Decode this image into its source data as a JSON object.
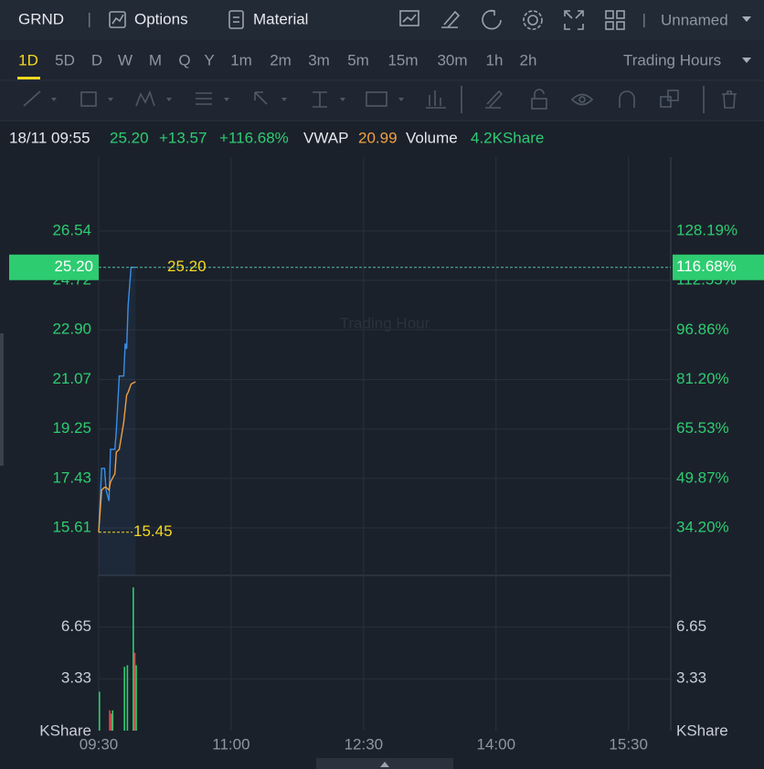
{
  "header": {
    "symbol": "GRND",
    "menu": [
      "Options",
      "Material"
    ],
    "layout_name": "Unnamed"
  },
  "timeframes": [
    "1D",
    "5D",
    "D",
    "W",
    "M",
    "Q",
    "Y",
    "1m",
    "2m",
    "3m",
    "5m",
    "15m",
    "30m",
    "1h",
    "2h"
  ],
  "session": "Trading Hours",
  "info": {
    "datetime": "18/11 09:55",
    "price": "25.20",
    "change": "+13.57",
    "change_pct": "+116.68%",
    "vwap_label": "VWAP",
    "vwap": "20.99",
    "volume_label": "Volume",
    "volume": "4.2KShare"
  },
  "chart_data": [
    {
      "type": "line",
      "watermark": "Trading Hour",
      "x": [
        "09:30",
        "09:32",
        "09:34",
        "09:35",
        "09:37",
        "09:38",
        "09:41",
        "09:42",
        "09:44",
        "09:47",
        "09:48",
        "09:49",
        "09:50",
        "09:52",
        "09:55"
      ],
      "xlim": [
        "09:30",
        "16:00"
      ],
      "xticks": [
        "09:30",
        "11:00",
        "12:30",
        "14:00",
        "15:30"
      ],
      "series": [
        {
          "color": "#3a8ee6",
          "values": [
            15.45,
            17.8,
            17.8,
            17.0,
            16.6,
            18.5,
            18.5,
            19.2,
            21.2,
            21.2,
            22.4,
            22.2,
            23.8,
            25.2,
            25.2
          ]
        },
        {
          "name": "VWAP",
          "color": "#f0a040",
          "values": [
            15.45,
            17.0,
            17.1,
            17.1,
            17.0,
            17.3,
            17.6,
            18.4,
            18.5,
            19.5,
            20.0,
            20.5,
            20.6,
            20.9,
            20.99
          ]
        }
      ],
      "ylim": [
        13.86,
        29.26
      ],
      "yticks": [
        15.61,
        17.43,
        19.25,
        21.07,
        {
          "value": 22.9,
          "label": "22.90"
        },
        24.72,
        26.54
      ],
      "y2lim": [
        19.17,
        151.59
      ],
      "y2ticks": [
        {
          "value": 34.2,
          "label": "34.20%"
        },
        {
          "value": 49.87,
          "label": "49.87%"
        },
        {
          "value": 65.53,
          "label": "65.53%"
        },
        {
          "value": 81.2,
          "label": "81.20%"
        },
        {
          "value": 96.86,
          "label": "96.86%"
        },
        {
          "value": 112.55,
          "label": "112.55%"
        },
        {
          "value": 128.19,
          "label": "128.19%"
        }
      ],
      "last_price": {
        "value": 25.2,
        "label": "25.20",
        "pct_label": "116.68%"
      },
      "low": {
        "value": 15.45,
        "label": "15.45"
      }
    },
    {
      "type": "bar",
      "ylabel": "KShare",
      "x": [
        "09:30",
        "09:37",
        "09:38",
        "09:39",
        "09:47",
        "09:49",
        "09:53",
        "09:54",
        "09:55"
      ],
      "values": [
        2.5,
        1.3,
        1.1,
        1.3,
        4.1,
        4.2,
        9.2,
        5.0,
        4.2
      ],
      "colors": [
        "#2ecc71",
        "#e04848",
        "#e04848",
        "#2ecc71",
        "#2ecc71",
        "#2ecc71",
        "#2ecc71",
        "#e04848",
        "#2ecc71"
      ],
      "xlim": [
        "09:30",
        "16:00"
      ],
      "xticks": [
        "09:30",
        "11:00",
        "12:30",
        "14:00",
        "15:30"
      ],
      "ylim": [
        0,
        9.97
      ],
      "yticks": [
        3.33,
        6.65
      ]
    }
  ]
}
